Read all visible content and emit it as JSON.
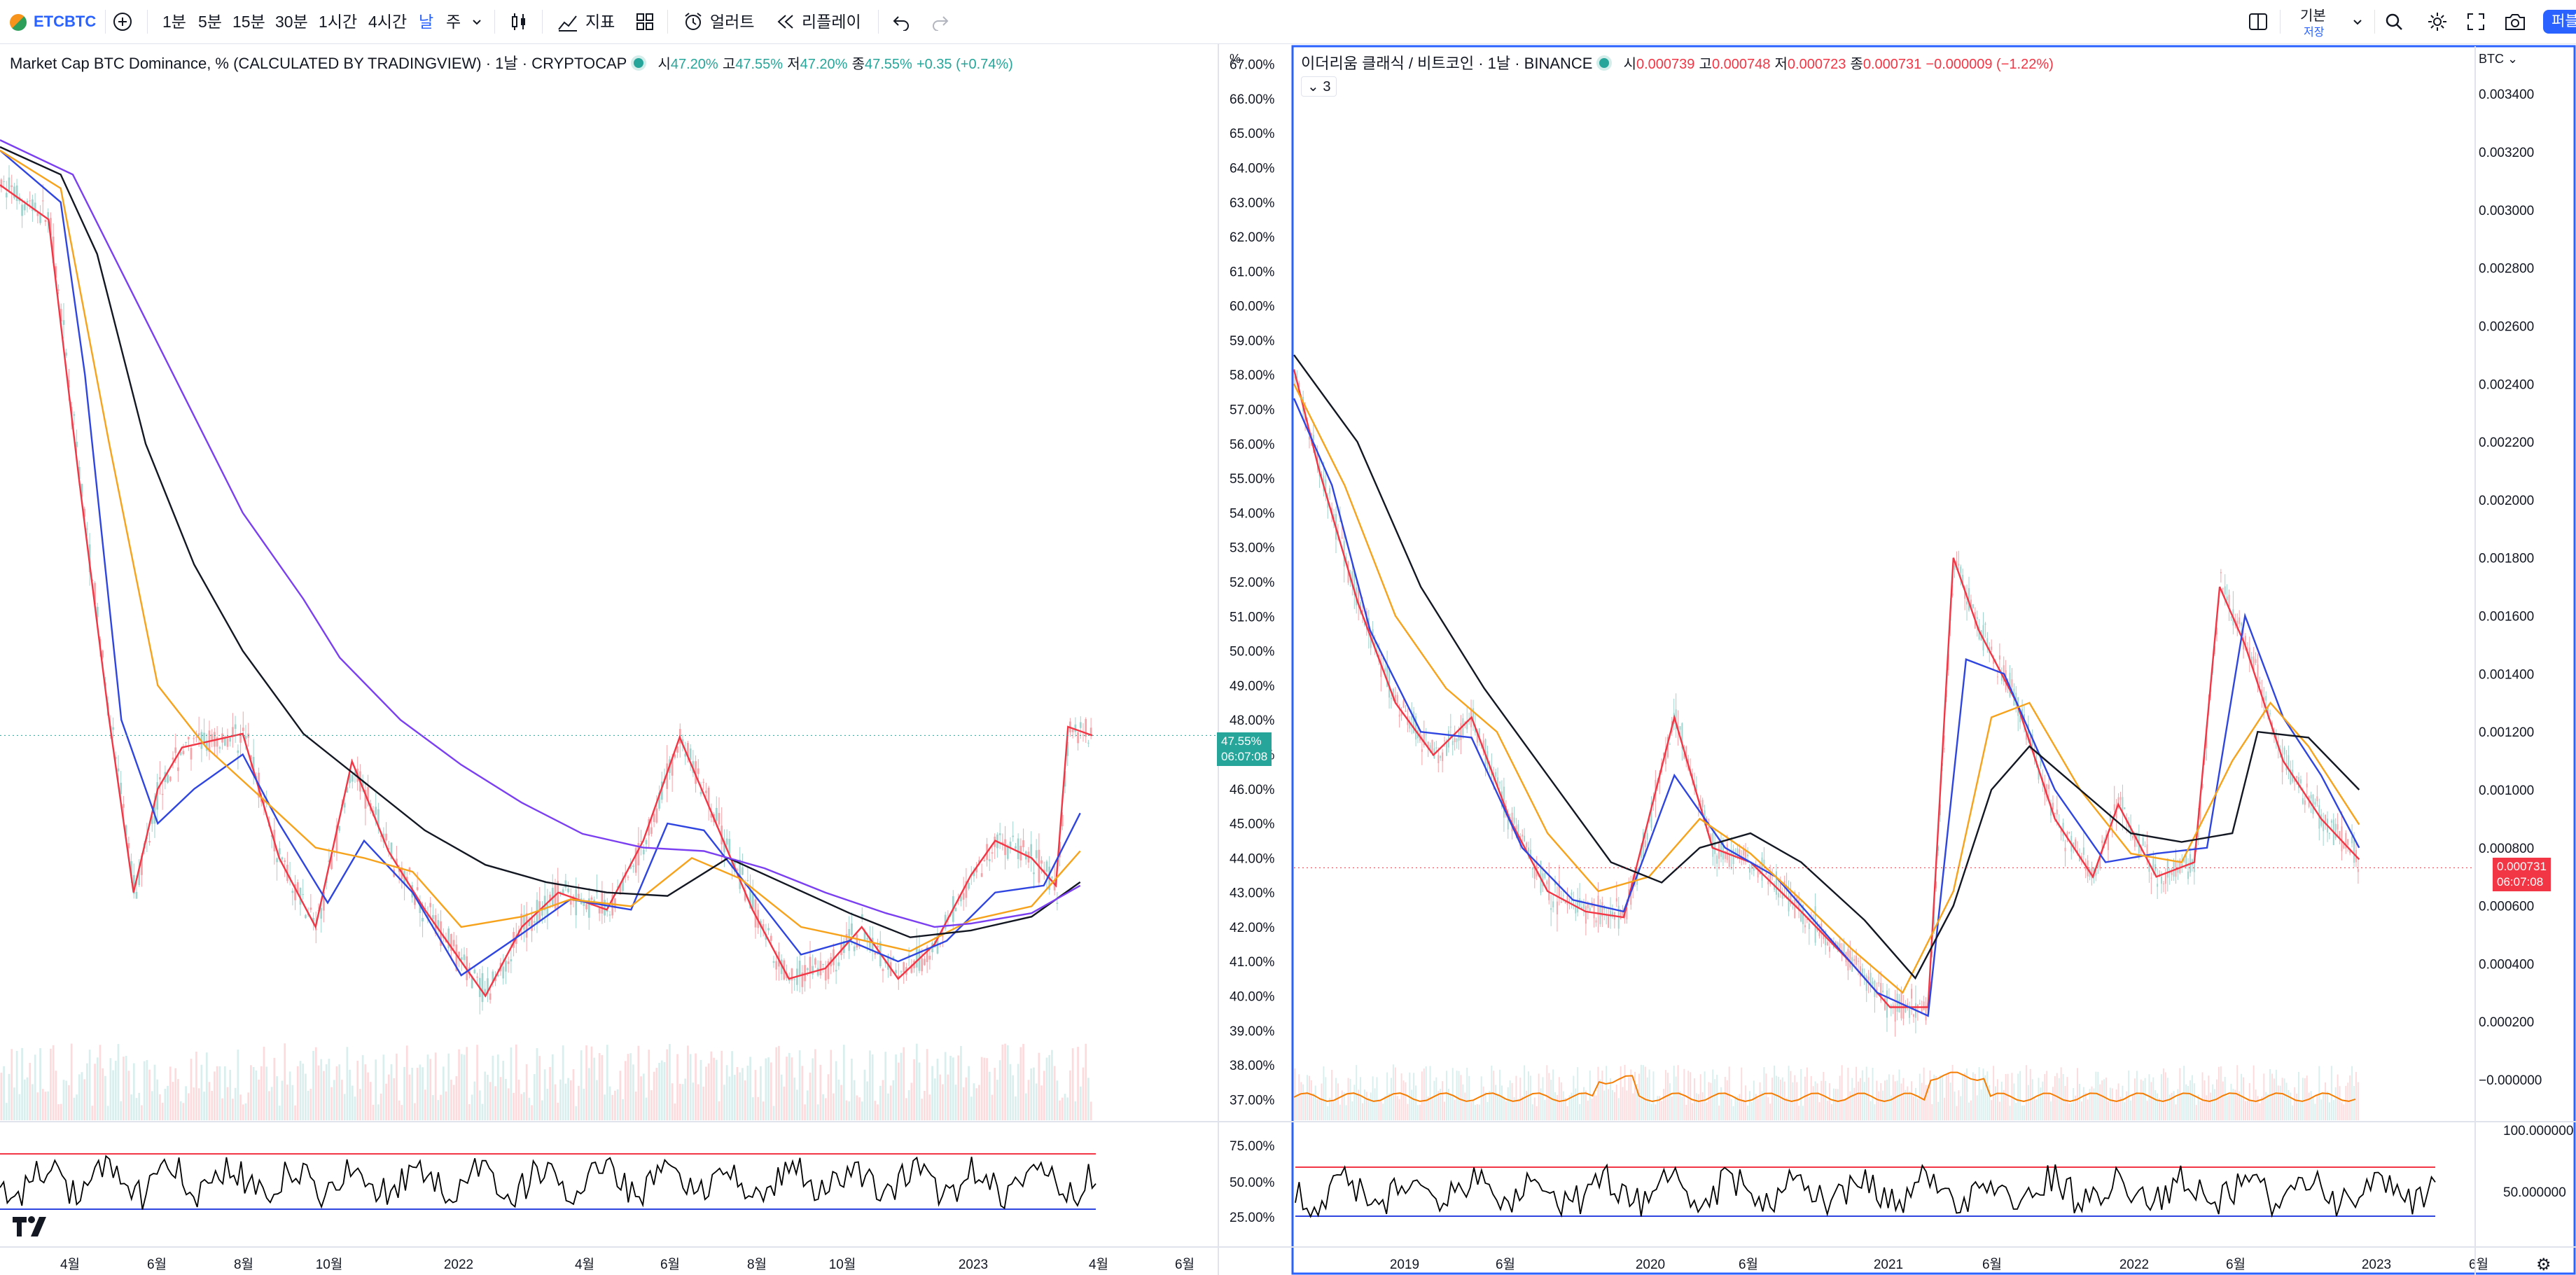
{
  "toolbar": {
    "symbol": "ETCBTC",
    "intervals": [
      "1분",
      "5분",
      "15분",
      "30분",
      "1시간",
      "4시간",
      "날",
      "주"
    ],
    "active_interval": "날",
    "indicators_label": "지표",
    "alert_label": "얼러트",
    "replay_label": "리플레이",
    "layout_name": "기본",
    "layout_status": "저장",
    "publish_label": "퍼블"
  },
  "left_pane": {
    "title": "Market Cap BTC Dominance, % (CALCULATED BY TRADINGVIEW) · 1날 · CRYPTOCAP",
    "ohlc": {
      "o_label": "시",
      "o": "47.20%",
      "h_label": "고",
      "h": "47.55%",
      "l_label": "저",
      "l": "47.20%",
      "c_label": "종",
      "c": "47.55%",
      "change": "+0.35 (+0.74%)"
    },
    "axis_unit": "%",
    "price_tag": "47.55%",
    "countdown": "06:07:08",
    "xaxis": [
      "4월",
      "6월",
      "8월",
      "10월",
      "2022",
      "4월",
      "6월",
      "8월",
      "10월",
      "2023",
      "4월",
      "6월"
    ],
    "rsi_ticks": [
      "75.00%",
      "50.00%",
      "25.00%"
    ]
  },
  "right_pane": {
    "title": "이더리움 클래식 / 비트코인 · 1날 · BINANCE",
    "ohlc": {
      "o_label": "시",
      "o": "0.000739",
      "h_label": "고",
      "h": "0.000748",
      "l_label": "저",
      "l": "0.000723",
      "c_label": "종",
      "c": "0.000731",
      "change": "−0.000009 (−1.22%)"
    },
    "indicator_count": "3",
    "axis_unit": "BTC",
    "price_tag": "0.000731",
    "countdown": "06:07:08",
    "xaxis": [
      "2019",
      "6월",
      "2020",
      "6월",
      "2021",
      "6월",
      "2022",
      "6월",
      "2023",
      "6월"
    ],
    "rsi_ticks": [
      "100.000000",
      "50.000000"
    ]
  },
  "colors": {
    "accent": "#2962ff",
    "up": "#26a69a",
    "down": "#f23645",
    "candle_up": "#9fd3cd",
    "candle_down": "#f4a3a8",
    "ma_red": "#f23645",
    "ma_blue": "#2f45e0",
    "ma_orange": "#f7a21b",
    "ma_black": "#131722",
    "ma_purple": "#7b3ff2"
  },
  "chart_data": [
    {
      "type": "line",
      "title": "Market Cap BTC Dominance, % (CALCULATED BY TRADINGVIEW) · 1날 · CRYPTOCAP",
      "ylabel": "%",
      "ylim": [
        36.4,
        67.6
      ],
      "yticks": [
        "67.00%",
        "66.00%",
        "65.00%",
        "64.00%",
        "63.00%",
        "62.00%",
        "61.00%",
        "60.00%",
        "59.00%",
        "58.00%",
        "57.00%",
        "56.00%",
        "55.00%",
        "54.00%",
        "53.00%",
        "52.00%",
        "51.00%",
        "50.00%",
        "49.00%",
        "48.00%",
        "47.00%",
        "46.00%",
        "45.00%",
        "44.00%",
        "43.00%",
        "42.00%",
        "41.00%",
        "40.00%",
        "39.00%",
        "38.00%",
        "37.00%"
      ],
      "x_ticks": [
        "4월",
        "6월",
        "8월",
        "10월",
        "2022",
        "4월",
        "6월",
        "8월",
        "10월",
        "2023",
        "4월",
        "6월"
      ],
      "grid": false,
      "series": [
        {
          "values": [
            [
              0,
              63.5
            ],
            [
              0.04,
              62.5
            ],
            [
              0.065,
              55
            ],
            [
              0.09,
              48
            ],
            [
              0.11,
              43
            ],
            [
              0.13,
              46
            ],
            [
              0.15,
              47.2
            ],
            [
              0.2,
              47.6
            ],
            [
              0.23,
              44
            ],
            [
              0.26,
              42
            ],
            [
              0.29,
              46.8
            ],
            [
              0.32,
              44.2
            ],
            [
              0.35,
              42.5
            ],
            [
              0.38,
              41
            ],
            [
              0.4,
              40
            ],
            [
              0.43,
              42
            ],
            [
              0.46,
              43
            ],
            [
              0.5,
              42.5
            ],
            [
              0.53,
              44.5
            ],
            [
              0.56,
              47.5
            ],
            [
              0.59,
              45
            ],
            [
              0.62,
              42.5
            ],
            [
              0.65,
              40.5
            ],
            [
              0.68,
              40.8
            ],
            [
              0.71,
              42
            ],
            [
              0.74,
              40.5
            ],
            [
              0.77,
              41.5
            ],
            [
              0.8,
              43.5
            ],
            [
              0.82,
              44.5
            ],
            [
              0.85,
              44
            ],
            [
              0.87,
              43.2
            ],
            [
              0.88,
              47.8
            ],
            [
              0.9,
              47.55
            ]
          ]
        },
        {
          "values": [
            [
              0,
              64.5
            ],
            [
              0.05,
              63
            ],
            [
              0.07,
              58
            ],
            [
              0.1,
              48
            ],
            [
              0.13,
              45
            ],
            [
              0.16,
              46
            ],
            [
              0.2,
              47
            ],
            [
              0.23,
              45
            ],
            [
              0.27,
              42.7
            ],
            [
              0.3,
              44.5
            ],
            [
              0.34,
              43
            ],
            [
              0.38,
              40.6
            ],
            [
              0.43,
              41.8
            ],
            [
              0.47,
              42.8
            ],
            [
              0.52,
              42.5
            ],
            [
              0.55,
              45
            ],
            [
              0.58,
              44.8
            ],
            [
              0.62,
              43
            ],
            [
              0.66,
              41.2
            ],
            [
              0.7,
              41.6
            ],
            [
              0.74,
              41
            ],
            [
              0.78,
              41.6
            ],
            [
              0.82,
              43
            ],
            [
              0.86,
              43.2
            ],
            [
              0.89,
              45.3
            ]
          ]
        },
        {
          "values": [
            [
              0,
              64.5
            ],
            [
              0.05,
              63.4
            ],
            [
              0.09,
              56
            ],
            [
              0.13,
              49
            ],
            [
              0.17,
              47.2
            ],
            [
              0.22,
              45.6
            ],
            [
              0.26,
              44.3
            ],
            [
              0.3,
              44
            ],
            [
              0.34,
              43.6
            ],
            [
              0.38,
              42
            ],
            [
              0.43,
              42.3
            ],
            [
              0.47,
              42.8
            ],
            [
              0.52,
              42.6
            ],
            [
              0.57,
              44
            ],
            [
              0.61,
              43.4
            ],
            [
              0.66,
              42
            ],
            [
              0.7,
              41.7
            ],
            [
              0.75,
              41.3
            ],
            [
              0.8,
              42.2
            ],
            [
              0.85,
              42.6
            ],
            [
              0.89,
              44.2
            ]
          ]
        },
        {
          "values": [
            [
              0,
              64.6
            ],
            [
              0.05,
              63.8
            ],
            [
              0.08,
              61.5
            ],
            [
              0.12,
              56
            ],
            [
              0.16,
              52.5
            ],
            [
              0.2,
              50
            ],
            [
              0.25,
              47.6
            ],
            [
              0.3,
              46.2
            ],
            [
              0.35,
              44.8
            ],
            [
              0.4,
              43.8
            ],
            [
              0.45,
              43.3
            ],
            [
              0.5,
              43
            ],
            [
              0.55,
              42.9
            ],
            [
              0.6,
              44
            ],
            [
              0.65,
              43.2
            ],
            [
              0.7,
              42.4
            ],
            [
              0.75,
              41.7
            ],
            [
              0.8,
              41.9
            ],
            [
              0.85,
              42.3
            ],
            [
              0.89,
              43.3
            ]
          ]
        },
        {
          "values": [
            [
              0,
              64.8
            ],
            [
              0.06,
              63.8
            ],
            [
              0.1,
              61
            ],
            [
              0.15,
              57.5
            ],
            [
              0.2,
              54
            ],
            [
              0.25,
              51.5
            ],
            [
              0.28,
              49.8
            ],
            [
              0.33,
              48
            ],
            [
              0.38,
              46.7
            ],
            [
              0.43,
              45.6
            ],
            [
              0.48,
              44.7
            ],
            [
              0.53,
              44.3
            ],
            [
              0.58,
              44.2
            ],
            [
              0.63,
              43.7
            ],
            [
              0.68,
              43
            ],
            [
              0.73,
              42.4
            ],
            [
              0.77,
              42
            ],
            [
              0.8,
              42.1
            ],
            [
              0.85,
              42.4
            ],
            [
              0.89,
              43.2
            ]
          ]
        }
      ]
    },
    {
      "type": "line",
      "title": "이더리움 클래식 / 비트코인 · 1날 · BINANCE",
      "ylabel": "BTC",
      "ylim": [
        -0.00014,
        0.00356
      ],
      "yticks": [
        "0.003400",
        "0.003200",
        "0.003000",
        "0.002800",
        "0.002600",
        "0.002400",
        "0.002200",
        "0.002000",
        "0.001800",
        "0.001600",
        "0.001400",
        "0.001200",
        "0.001000",
        "0.000800",
        "0.000600",
        "0.000400",
        "0.000200",
        "−0.000000"
      ],
      "x_ticks": [
        "2019",
        "6월",
        "2020",
        "6월",
        "2021",
        "6월",
        "2022",
        "6월",
        "2023",
        "6월"
      ],
      "grid": false,
      "series": [
        {
          "values": [
            [
              0,
              0.00245
            ],
            [
              0.02,
              0.0021
            ],
            [
              0.05,
              0.00165
            ],
            [
              0.08,
              0.0013
            ],
            [
              0.11,
              0.00112
            ],
            [
              0.14,
              0.00125
            ],
            [
              0.17,
              0.0009
            ],
            [
              0.2,
              0.00065
            ],
            [
              0.23,
              0.00058
            ],
            [
              0.26,
              0.00056
            ],
            [
              0.3,
              0.00125
            ],
            [
              0.33,
              0.0008
            ],
            [
              0.36,
              0.00075
            ],
            [
              0.4,
              0.00058
            ],
            [
              0.44,
              0.0004
            ],
            [
              0.47,
              0.00025
            ],
            [
              0.5,
              0.00025
            ],
            [
              0.52,
              0.0018
            ],
            [
              0.54,
              0.00155
            ],
            [
              0.57,
              0.0013
            ],
            [
              0.6,
              0.0009
            ],
            [
              0.63,
              0.0007
            ],
            [
              0.65,
              0.00095
            ],
            [
              0.68,
              0.0007
            ],
            [
              0.71,
              0.00075
            ],
            [
              0.73,
              0.0017
            ],
            [
              0.75,
              0.0015
            ],
            [
              0.78,
              0.0011
            ],
            [
              0.81,
              0.0009
            ],
            [
              0.84,
              0.00076
            ]
          ]
        },
        {
          "values": [
            [
              0,
              0.00235
            ],
            [
              0.03,
              0.00205
            ],
            [
              0.06,
              0.00155
            ],
            [
              0.1,
              0.0012
            ],
            [
              0.14,
              0.00118
            ],
            [
              0.18,
              0.0008
            ],
            [
              0.22,
              0.00062
            ],
            [
              0.26,
              0.00058
            ],
            [
              0.3,
              0.00105
            ],
            [
              0.34,
              0.0008
            ],
            [
              0.38,
              0.0007
            ],
            [
              0.42,
              0.0005
            ],
            [
              0.46,
              0.0003
            ],
            [
              0.5,
              0.00022
            ],
            [
              0.53,
              0.00145
            ],
            [
              0.56,
              0.0014
            ],
            [
              0.6,
              0.001
            ],
            [
              0.64,
              0.00075
            ],
            [
              0.68,
              0.00078
            ],
            [
              0.72,
              0.0008
            ],
            [
              0.75,
              0.0016
            ],
            [
              0.78,
              0.00125
            ],
            [
              0.81,
              0.00105
            ],
            [
              0.84,
              0.0008
            ]
          ]
        },
        {
          "values": [
            [
              0,
              0.0024
            ],
            [
              0.04,
              0.00205
            ],
            [
              0.08,
              0.0016
            ],
            [
              0.12,
              0.00135
            ],
            [
              0.16,
              0.0012
            ],
            [
              0.2,
              0.00085
            ],
            [
              0.24,
              0.00065
            ],
            [
              0.28,
              0.0007
            ],
            [
              0.32,
              0.0009
            ],
            [
              0.36,
              0.00078
            ],
            [
              0.4,
              0.00062
            ],
            [
              0.44,
              0.00045
            ],
            [
              0.48,
              0.0003
            ],
            [
              0.52,
              0.00065
            ],
            [
              0.55,
              0.00125
            ],
            [
              0.58,
              0.0013
            ],
            [
              0.62,
              0.001
            ],
            [
              0.66,
              0.00078
            ],
            [
              0.7,
              0.00075
            ],
            [
              0.74,
              0.0011
            ],
            [
              0.77,
              0.0013
            ],
            [
              0.8,
              0.00115
            ],
            [
              0.84,
              0.00088
            ]
          ]
        },
        {
          "values": [
            [
              0,
              0.0025
            ],
            [
              0.05,
              0.0022
            ],
            [
              0.1,
              0.0017
            ],
            [
              0.15,
              0.00135
            ],
            [
              0.2,
              0.00105
            ],
            [
              0.25,
              0.00075
            ],
            [
              0.29,
              0.00068
            ],
            [
              0.32,
              0.0008
            ],
            [
              0.36,
              0.00085
            ],
            [
              0.4,
              0.00075
            ],
            [
              0.45,
              0.00055
            ],
            [
              0.49,
              0.00035
            ],
            [
              0.52,
              0.0006
            ],
            [
              0.55,
              0.001
            ],
            [
              0.58,
              0.00115
            ],
            [
              0.62,
              0.001
            ],
            [
              0.66,
              0.00085
            ],
            [
              0.7,
              0.00082
            ],
            [
              0.74,
              0.00085
            ],
            [
              0.76,
              0.0012
            ],
            [
              0.8,
              0.00118
            ],
            [
              0.84,
              0.001
            ]
          ]
        }
      ]
    }
  ]
}
